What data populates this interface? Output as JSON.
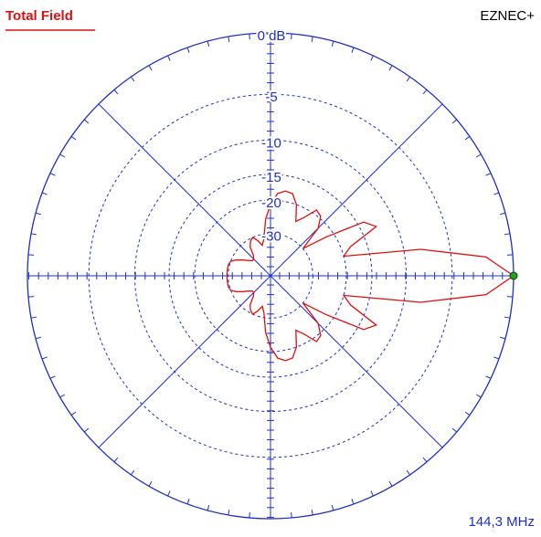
{
  "chart_data": {
    "type": "polar",
    "title": "Total Field",
    "brand": "EZNEC+",
    "frequency": "144,3 MHz",
    "scale": "arrl-log",
    "grid": true,
    "rmax": 0,
    "rticks": [
      {
        "value": 0,
        "label": "0 dB"
      },
      -5,
      -10,
      -15,
      -20,
      -30
    ],
    "theta": [
      0,
      5,
      10,
      15,
      20,
      25,
      30,
      35,
      40,
      45,
      50,
      55,
      60,
      65,
      70,
      75,
      80,
      85,
      90,
      95,
      100,
      105,
      110,
      115,
      120,
      125,
      130,
      135,
      140,
      145,
      150,
      155,
      160,
      165,
      170,
      175,
      180,
      185,
      190,
      195,
      200,
      205,
      210,
      215,
      220,
      225,
      230,
      235,
      240,
      245,
      250,
      255,
      260,
      265,
      270,
      275,
      280,
      285,
      290,
      295,
      300,
      305,
      310,
      315,
      320,
      325,
      330,
      335,
      340,
      345,
      350,
      355
    ],
    "series": [
      {
        "color": "#e01010",
        "values": [
          0,
          -2,
          -8,
          -20,
          -18,
          -12.6,
          -14,
          -22,
          -30,
          -22,
          -19.5,
          -19,
          -22,
          -24,
          -20,
          -18,
          -17.8,
          -18.5,
          -21,
          -25,
          -32,
          -35,
          -32,
          -30,
          -31,
          -33,
          -38,
          -40,
          -40,
          -38,
          -35,
          -32,
          -30,
          -29.5,
          -29.5,
          -29.5,
          -29.5,
          -29.5,
          -29.5,
          -29.5,
          -30,
          -32,
          -35,
          -38,
          -40,
          -40,
          -38,
          -33,
          -31,
          -30,
          -32,
          -35,
          -32,
          -25,
          -21,
          -18.5,
          -17.8,
          -18,
          -20,
          -24,
          -22,
          -19,
          -19.5,
          -22,
          -30,
          -22,
          -14,
          -12.6,
          -18,
          -20,
          -8,
          -2
        ]
      }
    ]
  }
}
